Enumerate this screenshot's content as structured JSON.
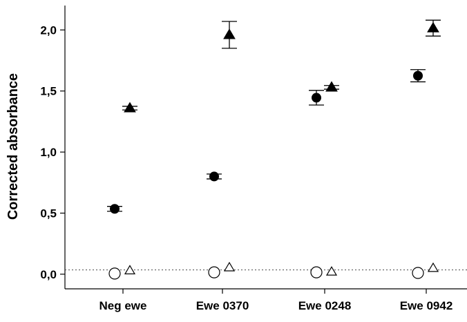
{
  "chart_data": {
    "type": "scatter",
    "title": "",
    "xlabel": "",
    "ylabel": "Corrected absorbance",
    "ylim": [
      -0.12,
      2.2
    ],
    "yticks": [
      0.0,
      0.5,
      1.0,
      1.5,
      2.0
    ],
    "ytick_labels": [
      "0,0",
      "0,5",
      "1,0",
      "1,5",
      "2,0"
    ],
    "categories": [
      "Neg ewe",
      "Ewe 0370",
      "Ewe 0248",
      "Ewe 0942"
    ],
    "grid": false,
    "legend": "none",
    "reference_line": {
      "y": 0.035,
      "style": "dotted"
    },
    "series": [
      {
        "marker": "filled-circle",
        "color": "#000000",
        "values": [
          0.535,
          0.8,
          1.445,
          1.625
        ],
        "errors": [
          0.02,
          0.02,
          0.06,
          0.05
        ]
      },
      {
        "marker": "filled-triangle",
        "color": "#000000",
        "values": [
          1.36,
          1.96,
          1.53,
          2.015
        ],
        "errors": [
          0.015,
          0.11,
          0.015,
          0.065
        ]
      },
      {
        "marker": "open-circle",
        "color": "#000000",
        "values": [
          0.005,
          0.015,
          0.015,
          0.01
        ],
        "errors": [
          0,
          0,
          0,
          0
        ]
      },
      {
        "marker": "open-triangle",
        "color": "#000000",
        "values": [
          0.03,
          0.055,
          0.02,
          0.05
        ],
        "errors": [
          0,
          0,
          0,
          0
        ]
      }
    ]
  }
}
